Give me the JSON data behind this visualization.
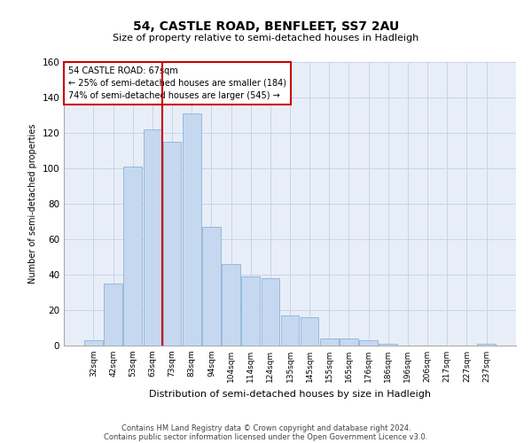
{
  "title": "54, CASTLE ROAD, BENFLEET, SS7 2AU",
  "subtitle": "Size of property relative to semi-detached houses in Hadleigh",
  "xlabel": "Distribution of semi-detached houses by size in Hadleigh",
  "ylabel": "Number of semi-detached properties",
  "footnote1": "Contains HM Land Registry data © Crown copyright and database right 2024.",
  "footnote2": "Contains public sector information licensed under the Open Government Licence v3.0.",
  "property_label": "54 CASTLE ROAD: 67sqm",
  "annotation_line1": "← 25% of semi-detached houses are smaller (184)",
  "annotation_line2": "74% of semi-detached houses are larger (545) →",
  "bar_color": "#c5d8f0",
  "bar_edge_color": "#8ab4d8",
  "vline_color": "#cc0000",
  "categories": [
    "32sqm",
    "42sqm",
    "53sqm",
    "63sqm",
    "73sqm",
    "83sqm",
    "94sqm",
    "104sqm",
    "114sqm",
    "124sqm",
    "135sqm",
    "145sqm",
    "155sqm",
    "165sqm",
    "176sqm",
    "186sqm",
    "196sqm",
    "206sqm",
    "217sqm",
    "227sqm",
    "237sqm"
  ],
  "values": [
    3,
    35,
    101,
    122,
    115,
    131,
    67,
    46,
    39,
    38,
    17,
    16,
    4,
    4,
    3,
    1,
    0,
    0,
    0,
    0,
    1
  ],
  "ylim": [
    0,
    160
  ],
  "yticks": [
    0,
    20,
    40,
    60,
    80,
    100,
    120,
    140,
    160
  ],
  "grid_color": "#c8d4e8",
  "bg_color": "#e8eef8",
  "vline_x": 3.5
}
